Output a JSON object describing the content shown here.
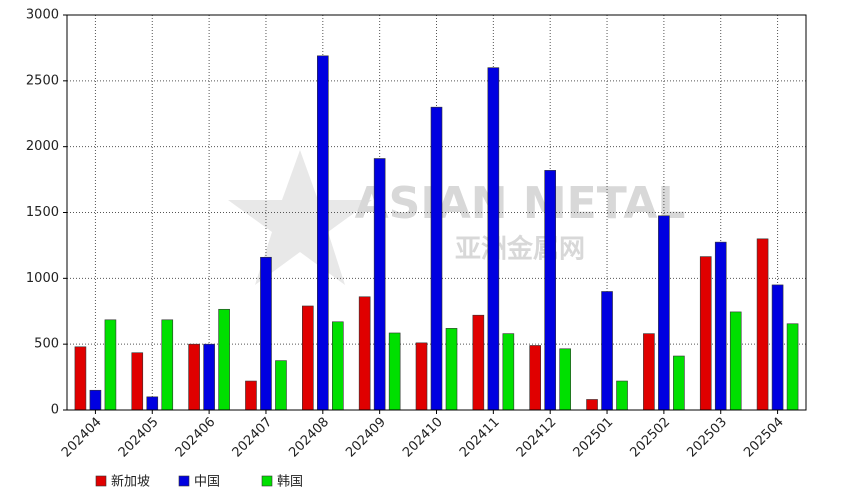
{
  "chart_data": {
    "type": "bar",
    "watermark": [
      "ASIAN METAL",
      "亚洲金属网"
    ],
    "categories": [
      "202404",
      "202405",
      "202406",
      "202407",
      "202408",
      "202409",
      "202410",
      "202411",
      "202412",
      "202501",
      "202502",
      "202503",
      "202504"
    ],
    "series": [
      {
        "name": "新加坡",
        "color": "#e00000",
        "values": [
          480,
          435,
          500,
          220,
          790,
          860,
          510,
          720,
          490,
          80,
          580,
          1165,
          1300
        ]
      },
      {
        "name": "中国",
        "color": "#0000e0",
        "values": [
          150,
          100,
          500,
          1160,
          2690,
          1910,
          2300,
          2600,
          1820,
          900,
          1475,
          1275,
          950
        ]
      },
      {
        "name": "韩国",
        "color": "#00e000",
        "values": [
          685,
          685,
          765,
          375,
          670,
          585,
          620,
          580,
          465,
          220,
          410,
          745,
          655
        ]
      }
    ],
    "ylim": [
      0,
      3000
    ],
    "yticks": [
      0,
      500,
      1000,
      1500,
      2000,
      2500,
      3000
    ],
    "grid": true
  }
}
